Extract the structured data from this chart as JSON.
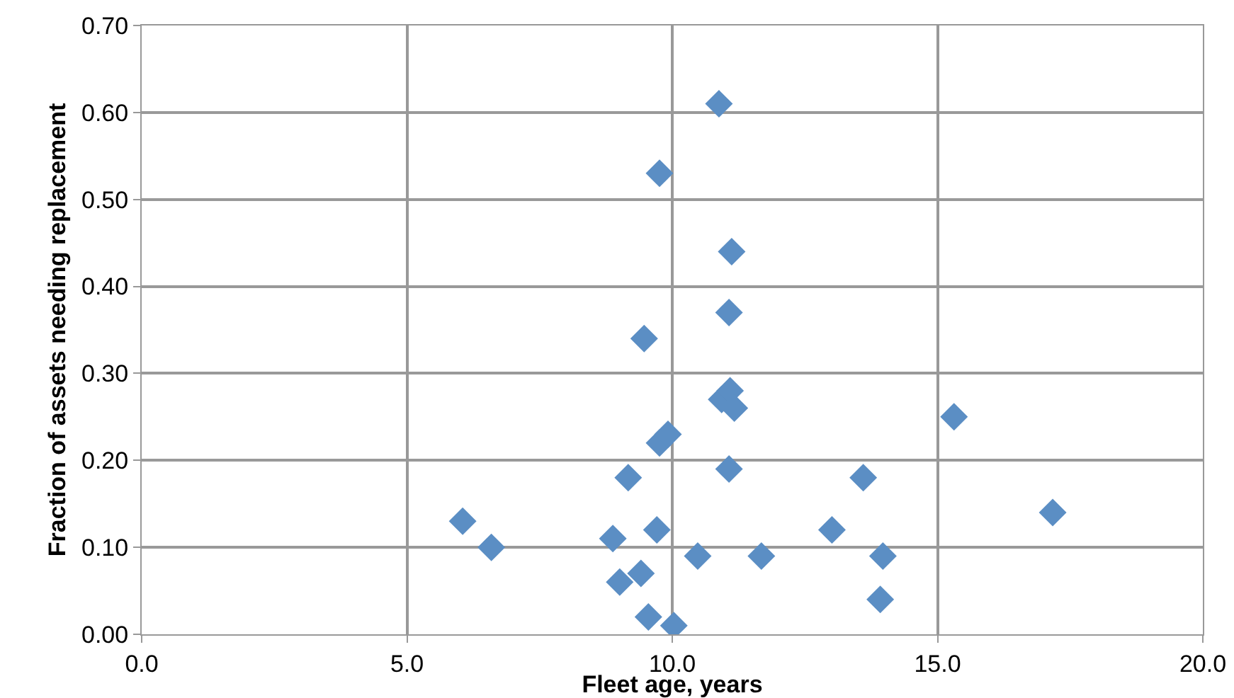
{
  "chart_data": {
    "type": "scatter",
    "xlabel": "Fleet age, years",
    "ylabel": "Fraction of assets needing replacement",
    "x": [
      6.05,
      6.59,
      8.88,
      9.01,
      9.41,
      9.55,
      10.03,
      9.71,
      9.17,
      9.76,
      9.92,
      9.47,
      9.76,
      10.88,
      11.07,
      11.12,
      10.93,
      11.09,
      11.17,
      11.07,
      10.48,
      11.68,
      13.01,
      13.6,
      13.92,
      13.97,
      15.31,
      17.17
    ],
    "values": [
      0.13,
      0.1,
      0.11,
      0.06,
      0.07,
      0.02,
      0.01,
      0.12,
      0.18,
      0.22,
      0.23,
      0.34,
      0.53,
      0.61,
      0.37,
      0.44,
      0.27,
      0.28,
      0.26,
      0.19,
      0.09,
      0.09,
      0.12,
      0.18,
      0.04,
      0.09,
      0.25,
      0.14
    ],
    "color": "#5b8ec4",
    "marker": "diamond",
    "grid": true,
    "xlim": [
      0,
      20
    ],
    "xticks": [
      {
        "value": 0,
        "label": "0.0"
      },
      {
        "value": 5,
        "label": "5.0"
      },
      {
        "value": 10,
        "label": "10.0"
      },
      {
        "value": 15,
        "label": "15.0"
      },
      {
        "value": 20,
        "label": "20.0"
      }
    ],
    "ylim": [
      0,
      0.7
    ],
    "yticks": [
      {
        "value": 0,
        "label": "0.00"
      },
      {
        "value": 0.1,
        "label": "0.10"
      },
      {
        "value": 0.2,
        "label": "0.20"
      },
      {
        "value": 0.3,
        "label": "0.30"
      },
      {
        "value": 0.4,
        "label": "0.40"
      },
      {
        "value": 0.5,
        "label": "0.50"
      },
      {
        "value": 0.6,
        "label": "0.60"
      },
      {
        "value": 0.7,
        "label": "0.70"
      }
    ]
  }
}
